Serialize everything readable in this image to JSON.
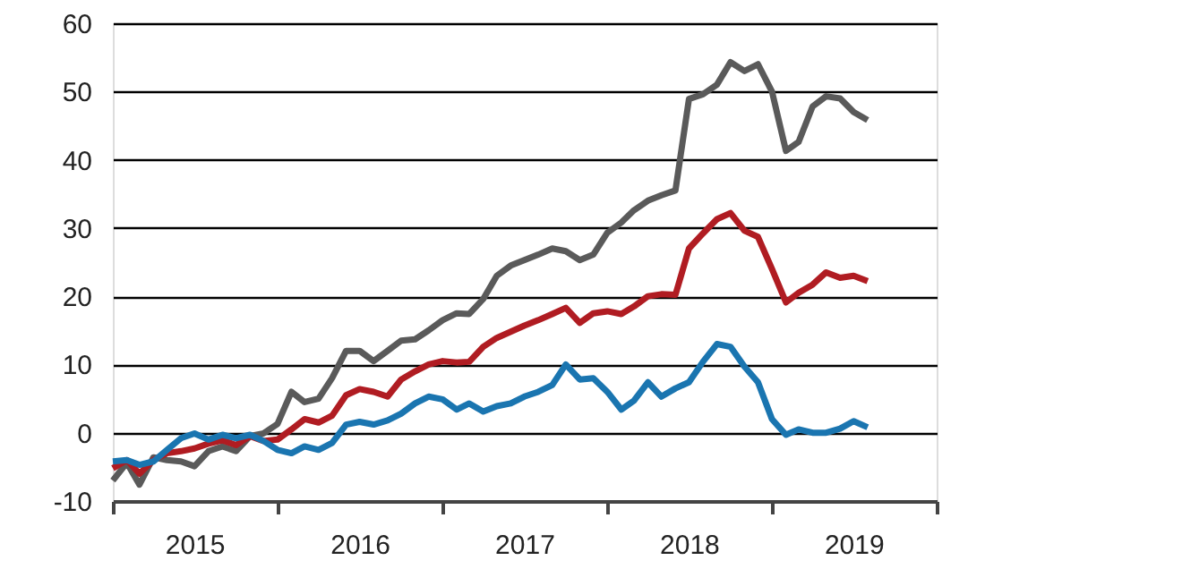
{
  "chart_data": {
    "type": "line",
    "x": [
      "2015-01",
      "2015-02",
      "2015-03",
      "2015-04",
      "2015-05",
      "2015-06",
      "2015-07",
      "2015-08",
      "2015-09",
      "2015-10",
      "2015-11",
      "2015-12",
      "2016-01",
      "2016-02",
      "2016-03",
      "2016-04",
      "2016-05",
      "2016-06",
      "2016-07",
      "2016-08",
      "2016-09",
      "2016-10",
      "2016-11",
      "2016-12",
      "2017-01",
      "2017-02",
      "2017-03",
      "2017-04",
      "2017-05",
      "2017-06",
      "2017-07",
      "2017-08",
      "2017-09",
      "2017-10",
      "2017-11",
      "2017-12",
      "2018-01",
      "2018-02",
      "2018-03",
      "2018-04",
      "2018-05",
      "2018-06",
      "2018-07",
      "2018-08",
      "2018-09",
      "2018-10",
      "2018-11",
      "2018-12",
      "2019-01",
      "2019-02",
      "2019-03",
      "2019-04",
      "2019-05",
      "2019-06",
      "2019-07",
      "2019-08"
    ],
    "series": [
      {
        "color": "#5a5a5a",
        "values": [
          -7,
          -4.4,
          -7.6,
          -3.6,
          -4,
          -4.2,
          -4.9,
          -2.7,
          -2,
          -2.7,
          -0.5,
          -0.1,
          1.3,
          6,
          4.5,
          5,
          8,
          12,
          12,
          10.5,
          12,
          13.5,
          13.7,
          15,
          16.5,
          17.5,
          17.4,
          19.6,
          23,
          24.5,
          25.3,
          26.1,
          27,
          26.6,
          25.3,
          26.1,
          29.3,
          30.8,
          32.6,
          34,
          34.8,
          35.5,
          48.9,
          49.6,
          51,
          54.3,
          53,
          54,
          50,
          41.3,
          42.6,
          47.8,
          49.3,
          49,
          47,
          45.8
        ]
      },
      {
        "color": "#b01c22",
        "values": [
          -5.2,
          -4,
          -6,
          -4,
          -3,
          -2.7,
          -2.3,
          -1.6,
          -1.1,
          -1.8,
          -0.5,
          -1.2,
          -1,
          0.5,
          2,
          1.5,
          2.5,
          5.5,
          6.4,
          6,
          5.3,
          7.8,
          9,
          10,
          10.5,
          10.3,
          10.4,
          12.6,
          13.9,
          14.8,
          15.7,
          16.5,
          17.4,
          18.3,
          16.1,
          17.5,
          17.8,
          17.4,
          18.5,
          20,
          20.3,
          20.2,
          27,
          29.2,
          31.3,
          32.2,
          29.6,
          28.7,
          24,
          19.1,
          20.5,
          21.7,
          23.5,
          22.7,
          23,
          22.2
        ]
      },
      {
        "color": "#1a75b0",
        "values": [
          -4.2,
          -4,
          -4.7,
          -4.2,
          -2.5,
          -0.8,
          -0.1,
          -1,
          -0.3,
          -0.8,
          -0.3,
          -1.2,
          -2.5,
          -3,
          -2,
          -2.5,
          -1.5,
          1.2,
          1.6,
          1.2,
          1.8,
          2.8,
          4.3,
          5.3,
          4.9,
          3.4,
          4.3,
          3.1,
          3.9,
          4.3,
          5.3,
          6,
          7,
          10,
          7.8,
          8,
          6,
          3.4,
          4.7,
          7.4,
          5.3,
          6.5,
          7.4,
          10.4,
          13,
          12.6,
          9.7,
          7.4,
          2,
          -0.3,
          0.5,
          0,
          0,
          0.6,
          1.7,
          0.8
        ]
      }
    ],
    "xlim": [
      "2015-01",
      "2020-01"
    ],
    "xticks": [
      {
        "value": "2015-01",
        "label": null
      },
      {
        "value": "2015-07",
        "label": "2015"
      },
      {
        "value": "2016-01",
        "label": null
      },
      {
        "value": "2016-07",
        "label": "2016"
      },
      {
        "value": "2017-01",
        "label": null
      },
      {
        "value": "2017-07",
        "label": "2017"
      },
      {
        "value": "2018-01",
        "label": null
      },
      {
        "value": "2018-07",
        "label": "2018"
      },
      {
        "value": "2019-01",
        "label": null
      },
      {
        "value": "2019-07",
        "label": "2019"
      },
      {
        "value": "2020-01",
        "label": null
      }
    ],
    "ylim": [
      -10,
      60
    ],
    "yticks": [
      -10,
      0,
      10,
      20,
      30,
      40,
      50,
      60
    ],
    "grid": "y",
    "legend": false,
    "marker": "none",
    "line_style": "solid"
  }
}
